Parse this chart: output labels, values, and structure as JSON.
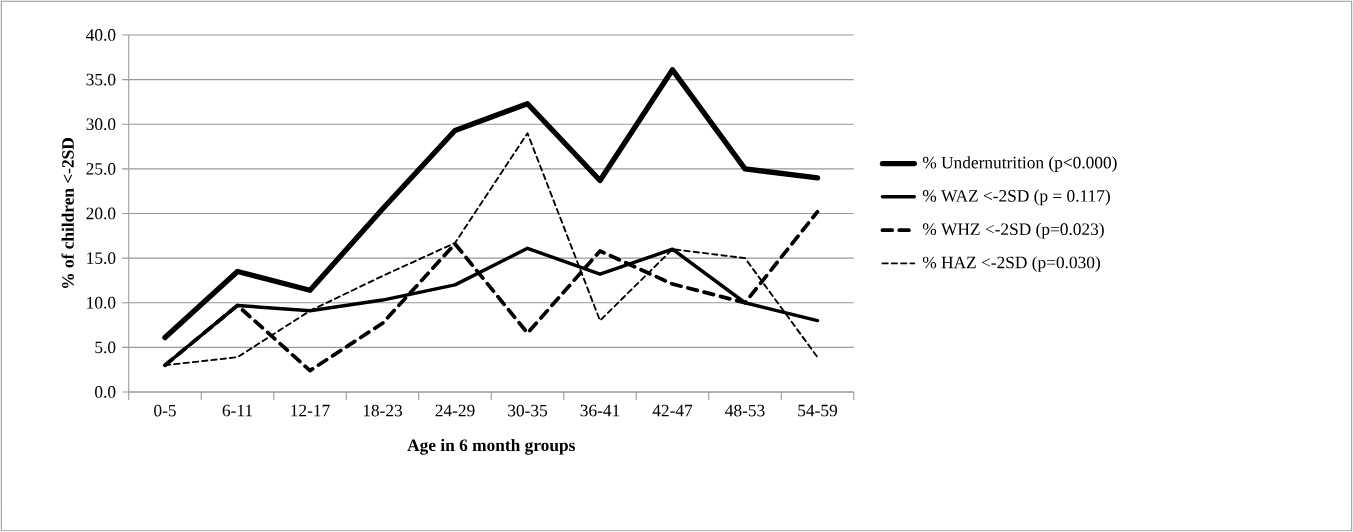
{
  "chart_data": {
    "type": "line",
    "xlabel": "Age in 6 month groups",
    "ylabel": "% of children <-2SD",
    "categories": [
      "0-5",
      "6-11",
      "12-17",
      "18-23",
      "24-29",
      "30-35",
      "36-41",
      "42-47",
      "48-53",
      "54-59"
    ],
    "series": [
      {
        "name": "% Undernutrition (p<0.000)",
        "color": "#000000",
        "line_style": "solid",
        "values": [
          6.1,
          13.5,
          11.4,
          20.5,
          29.3,
          32.3,
          23.7,
          36.1,
          25.0,
          24.0
        ]
      },
      {
        "name": "% WAZ <-2SD (p = 0.117)",
        "color": "#000000",
        "line_style": "solid",
        "values": [
          3.0,
          9.7,
          9.1,
          10.3,
          12.0,
          16.1,
          13.2,
          16.0,
          10.0,
          8.0
        ]
      },
      {
        "name": "% WHZ <-2SD (p=0.023)",
        "color": "#000000",
        "line_style": "dashed",
        "values": [
          3.0,
          9.7,
          2.4,
          7.7,
          16.6,
          6.6,
          15.8,
          12.1,
          10.0,
          20.2
        ]
      },
      {
        "name": "% HAZ <-2SD (p=0.030)",
        "color": "#000000",
        "line_style": "dashed",
        "values": [
          3.0,
          3.9,
          9.1,
          13.0,
          16.7,
          29.0,
          8.0,
          16.0,
          15.0,
          3.9
        ]
      }
    ],
    "ylim": [
      0,
      40
    ],
    "yticks": [
      {
        "value": 0,
        "label": "0.0"
      },
      {
        "value": 5,
        "label": "5.0"
      },
      {
        "value": 10,
        "label": "10.0"
      },
      {
        "value": 15,
        "label": "15.0"
      },
      {
        "value": 20,
        "label": "20.0"
      },
      {
        "value": 25,
        "label": "25.0"
      },
      {
        "value": 30,
        "label": "30.0"
      },
      {
        "value": 35,
        "label": "35.0"
      },
      {
        "value": 40,
        "label": "40.0"
      }
    ],
    "grid": "y",
    "legend": "right",
    "marker": "none"
  }
}
